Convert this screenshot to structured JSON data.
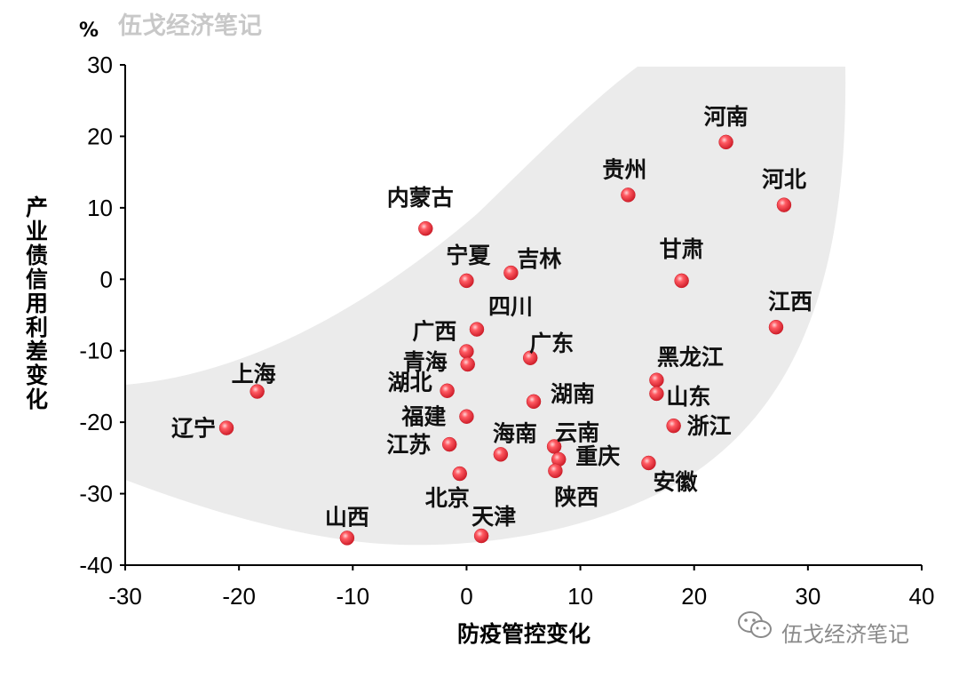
{
  "watermark_top": "伍戈经济笔记",
  "watermark_bottom": "伍戈经济笔记",
  "watermark_icon": "wechat-icon",
  "chart_data": {
    "type": "scatter",
    "xlabel": "防疫管控变化",
    "ylabel": "产业债信用利差变化",
    "yunit": "%",
    "xlim": [
      -30,
      40
    ],
    "ylim": [
      -40,
      30
    ],
    "xticks": [
      -30,
      -20,
      -10,
      0,
      10,
      20,
      30,
      40
    ],
    "yticks": [
      30,
      20,
      10,
      0,
      -10,
      -20,
      -30,
      -40
    ],
    "xtick_labels": [
      "-30",
      "-20",
      "-10",
      "0",
      "10",
      "20",
      "30",
      "40"
    ],
    "ytick_labels": [
      "30",
      "20",
      "10",
      "0",
      "-10",
      "-20",
      "-30",
      "-40"
    ],
    "grid": false,
    "point_color": "#e8303a",
    "band_color": "#ebebeb",
    "points": [
      {
        "label": "河南",
        "x": 22.8,
        "y": 19.2
      },
      {
        "label": "贵州",
        "x": 14.2,
        "y": 11.8
      },
      {
        "label": "河北",
        "x": 27.9,
        "y": 10.4
      },
      {
        "label": "内蒙古",
        "x": -3.6,
        "y": 7.1
      },
      {
        "label": "吉林",
        "x": 3.9,
        "y": 0.9
      },
      {
        "label": "宁夏",
        "x": 0.0,
        "y": -0.2
      },
      {
        "label": "甘肃",
        "x": 18.9,
        "y": -0.2
      },
      {
        "label": "四川",
        "x": 0.9,
        "y": -7.0
      },
      {
        "label": "江西",
        "x": 27.2,
        "y": -6.7
      },
      {
        "label": "广西",
        "x": 0.0,
        "y": -10.1
      },
      {
        "label": "青海",
        "x": 0.1,
        "y": -11.9
      },
      {
        "label": "广东",
        "x": 5.6,
        "y": -11.0
      },
      {
        "label": "黑龙江",
        "x": 16.7,
        "y": -14.1
      },
      {
        "label": "上海",
        "x": -18.4,
        "y": -15.7
      },
      {
        "label": "湖北",
        "x": -1.7,
        "y": -15.6
      },
      {
        "label": "山东",
        "x": 16.7,
        "y": -16.0
      },
      {
        "label": "湖南",
        "x": 5.9,
        "y": -17.1
      },
      {
        "label": "福建",
        "x": 0.0,
        "y": -19.2
      },
      {
        "label": "浙江",
        "x": 18.2,
        "y": -20.5
      },
      {
        "label": "辽宁",
        "x": -21.1,
        "y": -20.8
      },
      {
        "label": "江苏",
        "x": -1.5,
        "y": -23.1
      },
      {
        "label": "云南",
        "x": 7.7,
        "y": -23.4
      },
      {
        "label": "海南",
        "x": 3.0,
        "y": -24.5
      },
      {
        "label": "重庆",
        "x": 8.1,
        "y": -25.2
      },
      {
        "label": "陕西",
        "x": 7.8,
        "y": -26.8
      },
      {
        "label": "安徽",
        "x": 16.0,
        "y": -25.7
      },
      {
        "label": "北京",
        "x": -0.6,
        "y": -27.2
      },
      {
        "label": "山西",
        "x": -10.5,
        "y": -36.2
      },
      {
        "label": "天津",
        "x": 1.3,
        "y": -35.9
      }
    ]
  }
}
